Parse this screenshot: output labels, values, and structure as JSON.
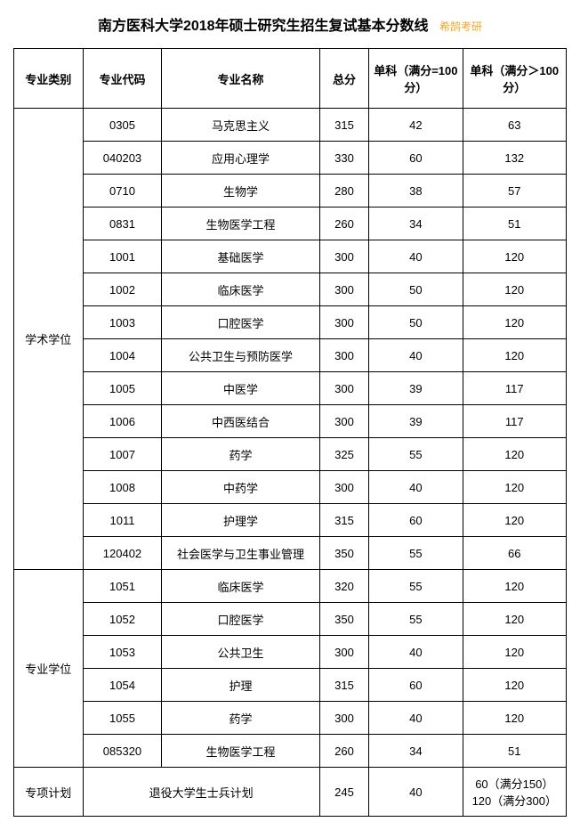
{
  "title": "南方医科大学2018年硕士研究生招生复试基本分数线",
  "watermark": "希鹄考研",
  "headers": {
    "category": "专业类别",
    "code": "专业代码",
    "name": "专业名称",
    "total": "总分",
    "sub100": "单科（满分=100分）",
    "subgt100": "单科（满分＞100分）"
  },
  "group1": {
    "category": "学术学位",
    "rows": [
      {
        "code": "0305",
        "name": "马克思主义",
        "total": "315",
        "s100": "42",
        "sgt": "63"
      },
      {
        "code": "040203",
        "name": "应用心理学",
        "total": "330",
        "s100": "60",
        "sgt": "132"
      },
      {
        "code": "0710",
        "name": "生物学",
        "total": "280",
        "s100": "38",
        "sgt": "57"
      },
      {
        "code": "0831",
        "name": "生物医学工程",
        "total": "260",
        "s100": "34",
        "sgt": "51"
      },
      {
        "code": "1001",
        "name": "基础医学",
        "total": "300",
        "s100": "40",
        "sgt": "120"
      },
      {
        "code": "1002",
        "name": "临床医学",
        "total": "300",
        "s100": "50",
        "sgt": "120"
      },
      {
        "code": "1003",
        "name": "口腔医学",
        "total": "300",
        "s100": "50",
        "sgt": "120"
      },
      {
        "code": "1004",
        "name": "公共卫生与预防医学",
        "total": "300",
        "s100": "40",
        "sgt": "120"
      },
      {
        "code": "1005",
        "name": "中医学",
        "total": "300",
        "s100": "39",
        "sgt": "117"
      },
      {
        "code": "1006",
        "name": "中西医结合",
        "total": "300",
        "s100": "39",
        "sgt": "117"
      },
      {
        "code": "1007",
        "name": "药学",
        "total": "325",
        "s100": "55",
        "sgt": "120"
      },
      {
        "code": "1008",
        "name": "中药学",
        "total": "300",
        "s100": "40",
        "sgt": "120"
      },
      {
        "code": "1011",
        "name": "护理学",
        "total": "315",
        "s100": "60",
        "sgt": "120"
      },
      {
        "code": "120402",
        "name": "社会医学与卫生事业管理",
        "total": "350",
        "s100": "55",
        "sgt": "66"
      }
    ]
  },
  "group2": {
    "category": "专业学位",
    "rows": [
      {
        "code": "1051",
        "name": "临床医学",
        "total": "320",
        "s100": "55",
        "sgt": "120"
      },
      {
        "code": "1052",
        "name": "口腔医学",
        "total": "350",
        "s100": "55",
        "sgt": "120"
      },
      {
        "code": "1053",
        "name": "公共卫生",
        "total": "300",
        "s100": "40",
        "sgt": "120"
      },
      {
        "code": "1054",
        "name": "护理",
        "total": "315",
        "s100": "60",
        "sgt": "120"
      },
      {
        "code": "1055",
        "name": "药学",
        "total": "300",
        "s100": "40",
        "sgt": "120"
      },
      {
        "code": "085320",
        "name": "生物医学工程",
        "total": "260",
        "s100": "34",
        "sgt": "51"
      }
    ]
  },
  "special": {
    "category": "专项计划",
    "name": "退役大学生士兵计划",
    "total": "245",
    "s100": "40",
    "sgt_line1": "60（满分150）",
    "sgt_line2": "120（满分300）"
  }
}
